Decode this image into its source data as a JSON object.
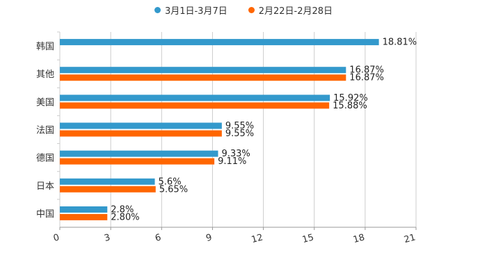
{
  "chart_data": {
    "type": "bar",
    "orientation": "horizontal",
    "categories": [
      "韩国",
      "其他",
      "美国",
      "法国",
      "德国",
      "日本",
      "中国"
    ],
    "series": [
      {
        "name": "3月1日-3月7日",
        "color": "#3399cc",
        "values": [
          18.81,
          16.87,
          15.92,
          9.55,
          9.33,
          5.6,
          2.8
        ],
        "labels": [
          "18.81%",
          "16.87%",
          "15.92%",
          "9.55%",
          "9.33%",
          "5.6%",
          "2.8%"
        ]
      },
      {
        "name": "2月22日-2月28日",
        "color": "#ff6600",
        "values": [
          null,
          16.87,
          15.88,
          9.55,
          9.11,
          5.65,
          2.8
        ],
        "labels": [
          "",
          "16.87%",
          "15.88%",
          "9.55%",
          "9.11%",
          "5.65%",
          "2.80%"
        ]
      }
    ],
    "xlim": [
      0,
      21
    ],
    "xticks": [
      "0",
      "3",
      "6",
      "9",
      "12",
      "15",
      "18",
      "21"
    ],
    "legend_position": "top-center",
    "grid": "vertical"
  }
}
